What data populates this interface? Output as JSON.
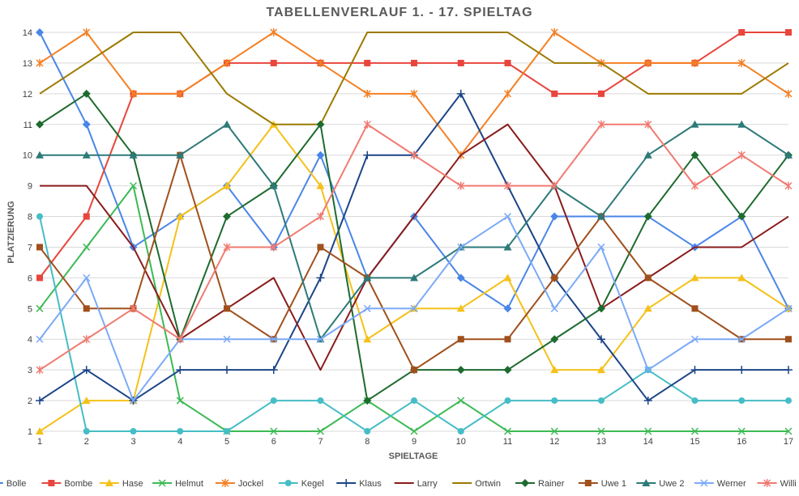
{
  "chart_data": {
    "type": "line",
    "title": "TABELLENVERLAUF 1. - 17. SPIELTAG",
    "xlabel": "SPIELTAGE",
    "ylabel": "PLATZIERUNG",
    "x": [
      1,
      2,
      3,
      4,
      5,
      6,
      7,
      8,
      9,
      10,
      11,
      12,
      13,
      14,
      15,
      16,
      17
    ],
    "ylim": [
      1,
      14
    ],
    "yticks": [
      1,
      2,
      3,
      4,
      5,
      6,
      7,
      8,
      9,
      10,
      11,
      12,
      13,
      14
    ],
    "grid": true,
    "legend": "bottom",
    "series": [
      {
        "name": "Bolle",
        "color": "#4a86e8",
        "marker": "diamond",
        "values": [
          14,
          11,
          7,
          8,
          9,
          7,
          10,
          6,
          8,
          6,
          5,
          8,
          8,
          8,
          7,
          8,
          5
        ]
      },
      {
        "name": "Bombe",
        "color": "#e8453c",
        "marker": "square",
        "values": [
          6,
          8,
          12,
          12,
          13,
          13,
          13,
          13,
          13,
          13,
          13,
          12,
          12,
          13,
          13,
          14,
          14
        ]
      },
      {
        "name": "Hase",
        "color": "#f5c119",
        "marker": "triangle",
        "values": [
          1,
          2,
          2,
          8,
          9,
          11,
          9,
          4,
          5,
          5,
          6,
          3,
          3,
          5,
          6,
          6,
          5
        ]
      },
      {
        "name": "Helmut",
        "color": "#3cba54",
        "marker": "x",
        "values": [
          5,
          7,
          9,
          2,
          1,
          1,
          1,
          2,
          1,
          2,
          1,
          1,
          1,
          1,
          1,
          1,
          1
        ]
      },
      {
        "name": "Jockel",
        "color": "#f48024",
        "marker": "star",
        "values": [
          13,
          14,
          12,
          12,
          13,
          14,
          13,
          12,
          12,
          10,
          12,
          14,
          13,
          13,
          13,
          13,
          12
        ]
      },
      {
        "name": "Kegel",
        "color": "#46bdc6",
        "marker": "circle",
        "values": [
          8,
          1,
          1,
          1,
          1,
          2,
          2,
          1,
          2,
          1,
          2,
          2,
          2,
          3,
          2,
          2,
          2
        ]
      },
      {
        "name": "Klaus",
        "color": "#1c4587",
        "marker": "plus",
        "values": [
          2,
          3,
          2,
          3,
          3,
          3,
          6,
          10,
          10,
          12,
          9,
          6,
          4,
          2,
          3,
          3,
          3
        ]
      },
      {
        "name": "Larry",
        "color": "#8a1c1c",
        "marker": "none",
        "values": [
          9,
          9,
          7,
          4,
          5,
          6,
          3,
          6,
          8,
          10,
          11,
          9,
          5,
          6,
          7,
          7,
          8
        ]
      },
      {
        "name": "Ortwin",
        "color": "#9c7a00",
        "marker": "none",
        "values": [
          12,
          13,
          14,
          14,
          12,
          11,
          11,
          14,
          14,
          14,
          14,
          13,
          13,
          12,
          12,
          12,
          13
        ]
      },
      {
        "name": "Rainer",
        "color": "#1e6b2f",
        "marker": "diamond",
        "values": [
          11,
          12,
          10,
          4,
          8,
          9,
          11,
          2,
          3,
          3,
          3,
          4,
          5,
          8,
          10,
          8,
          10
        ]
      },
      {
        "name": "Uwe 1",
        "color": "#a0501c",
        "marker": "square",
        "values": [
          7,
          5,
          5,
          10,
          5,
          4,
          7,
          6,
          3,
          4,
          4,
          6,
          8,
          6,
          5,
          4,
          4
        ]
      },
      {
        "name": "Uwe 2",
        "color": "#2d7a78",
        "marker": "triangle",
        "values": [
          10,
          10,
          10,
          10,
          11,
          9,
          4,
          6,
          6,
          7,
          7,
          9,
          8,
          10,
          11,
          11,
          10
        ]
      },
      {
        "name": "Werner",
        "color": "#7baaf7",
        "marker": "x",
        "values": [
          4,
          6,
          2,
          4,
          4,
          4,
          4,
          5,
          5,
          7,
          8,
          5,
          7,
          3,
          4,
          4,
          5
        ]
      },
      {
        "name": "Willi",
        "color": "#f07b72",
        "marker": "star",
        "values": [
          3,
          4,
          5,
          4,
          7,
          7,
          8,
          11,
          10,
          9,
          9,
          9,
          11,
          11,
          9,
          10,
          9
        ]
      }
    ]
  }
}
